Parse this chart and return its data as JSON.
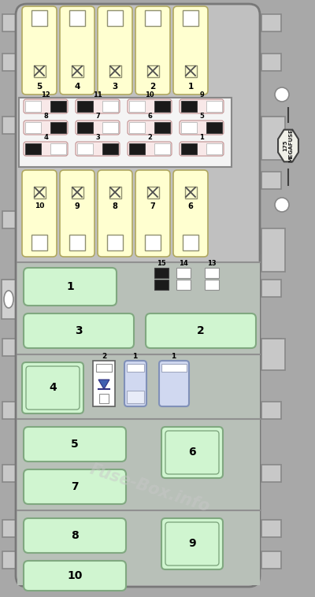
{
  "fig_width": 4.0,
  "fig_height": 7.58,
  "panel_color": "#c8c8c8",
  "panel_edge": "#888888",
  "relay_yellow": "#ffffd0",
  "relay_green": "#d0f5d0",
  "relay_blue": "#c8d0f0",
  "mini_fuse_bg": "#f8e8e8",
  "mini_fuse_edge": "#c09090",
  "white_section_bg": "#f0f0f0",
  "lower_section_bg": "#c0c8c0",
  "watermark": "Fuse-Box.info",
  "megafuse_label": "175\nMEGAFUSE",
  "top_relays": [
    "5",
    "4",
    "3",
    "2",
    "1"
  ],
  "bot_relays": [
    "10",
    "9",
    "8",
    "7",
    "6"
  ],
  "mini_fuse_row1": [
    "12",
    "11",
    "10",
    "9"
  ],
  "mini_fuse_row2": [
    "8",
    "7",
    "6",
    "5"
  ],
  "mini_fuse_row3": [
    "4",
    "3",
    "2",
    "1"
  ],
  "mini_dark_row1": [
    false,
    true,
    false,
    true
  ],
  "mini_dark_row2": [
    false,
    true,
    false,
    false
  ],
  "mini_dark_row3": [
    true,
    false,
    true,
    true
  ]
}
